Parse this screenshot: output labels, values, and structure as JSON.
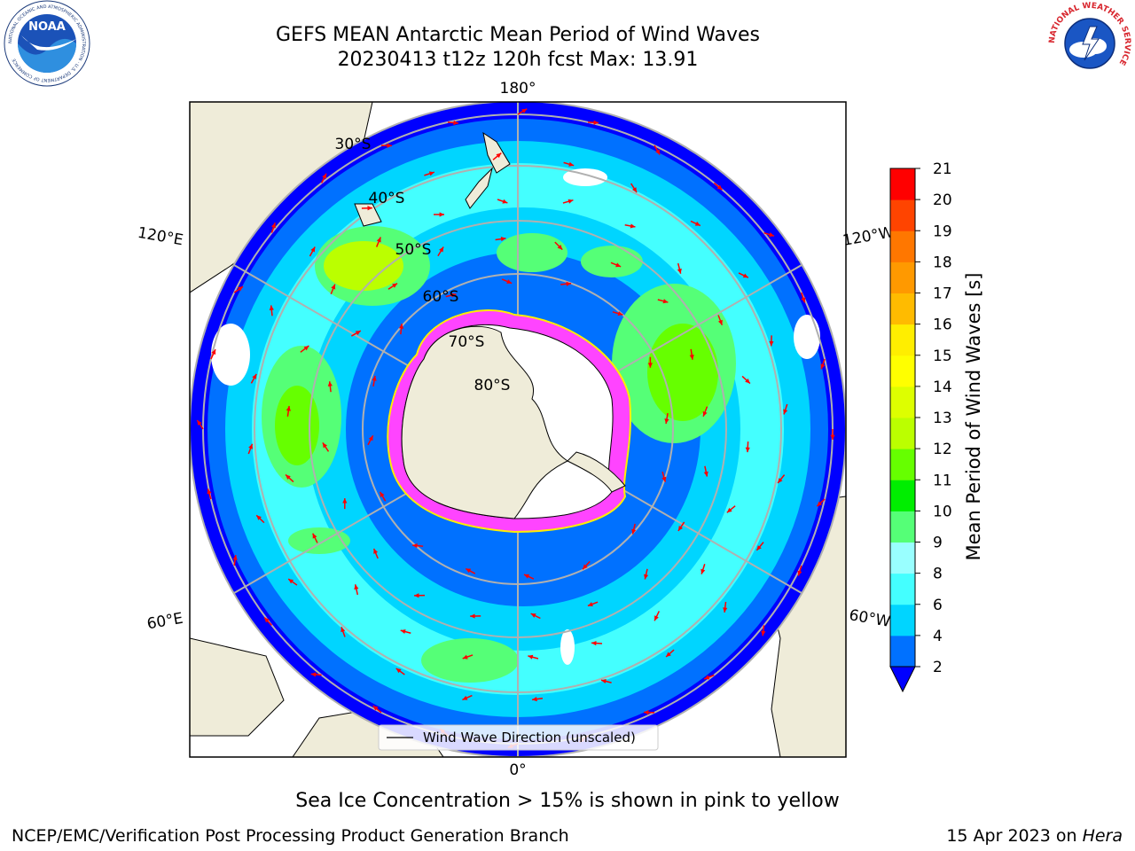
{
  "header": {
    "title_line1": "GEFS MEAN Antarctic Mean Period of Wind Waves",
    "title_line2": "20230413 t12z 120h fcst   Max: 13.91",
    "left_logo": {
      "icon": "noaa-logo-icon",
      "text": "NOAA",
      "ring_text": "NATIONAL OCEANIC AND ATMOSPHERIC ADMINISTRATION · U.S. DEPARTMENT OF COMMERCE"
    },
    "right_logo": {
      "icon": "nws-logo-icon",
      "ring_text": "NATIONAL WEATHER SERVICE"
    }
  },
  "map": {
    "projection": "south-polar-stereographic",
    "lon_labels": {
      "top": "180°",
      "bottom": "0°",
      "upper_left": "120°E",
      "upper_right": "120°W",
      "lower_left": "60°E",
      "lower_right": "60°W"
    },
    "lat_labels": [
      "30°S",
      "40°S",
      "50°S",
      "60°S",
      "70°S",
      "80°S"
    ],
    "legend_label": "Wind Wave Direction (unscaled)",
    "colors": {
      "land": "#efecd9",
      "ocean_low": "#0000ff",
      "sea_ice": "#ff44ff",
      "arrow": "#ff0000",
      "grid": "#b0b0b0"
    }
  },
  "colorbar": {
    "label": "Mean Period of Wind Waves [s]",
    "ticks": [
      "2",
      "4",
      "6",
      "8",
      "9",
      "10",
      "11",
      "12",
      "13",
      "14",
      "15",
      "16",
      "17",
      "18",
      "19",
      "20",
      "21"
    ],
    "colors": [
      "#0071ff",
      "#00d5ff",
      "#44ffff",
      "#99ffff",
      "#55ff77",
      "#00ee00",
      "#66ff00",
      "#bbff00",
      "#ddff00",
      "#ffff00",
      "#ffee00",
      "#ffbb00",
      "#ff9900",
      "#ff7700",
      "#ff4400",
      "#ff0000"
    ],
    "under_color": "#0000ff"
  },
  "footer": {
    "note": "Sea Ice Concentration > 15% is shown in pink to yellow",
    "credit": "NCEP/EMC/Verification Post Processing Product Generation Branch",
    "date": "15 Apr 2023 on",
    "system": "Hera"
  }
}
